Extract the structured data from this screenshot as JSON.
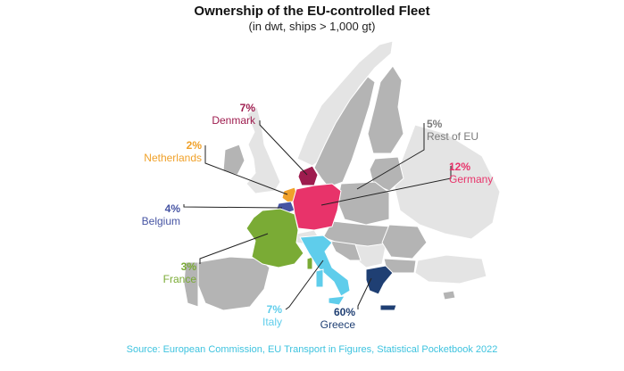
{
  "title": "Ownership of the EU-controlled Fleet",
  "subtitle": "(in dwt, ships > 1,000 gt)",
  "source": "Source: European Commission, EU Transport in Figures, Statistical Pocketbook 2022",
  "colors": {
    "non_eu": "#e4e4e4",
    "rest_of_eu": "#b4b4b4",
    "border": "#ffffff",
    "line": "#222222"
  },
  "countries": [
    {
      "key": "denmark",
      "pct": "7%",
      "name": "Denmark",
      "color": "#9e1c4e"
    },
    {
      "key": "netherlands",
      "pct": "2%",
      "name": "Netherlands",
      "color": "#f0a12a"
    },
    {
      "key": "belgium",
      "pct": "4%",
      "name": "Belgium",
      "color": "#4654a3"
    },
    {
      "key": "france",
      "pct": "3%",
      "name": "France",
      "color": "#7aab35"
    },
    {
      "key": "italy",
      "pct": "7%",
      "name": "Italy",
      "color": "#5fcdeb"
    },
    {
      "key": "greece",
      "pct": "60%",
      "name": "Greece",
      "color": "#1f3f73"
    },
    {
      "key": "germany",
      "pct": "12%",
      "name": "Germany",
      "color": "#e8336a"
    },
    {
      "key": "rest",
      "pct": "5%",
      "name": "Rest of EU",
      "color": "#7b7b7b"
    }
  ]
}
